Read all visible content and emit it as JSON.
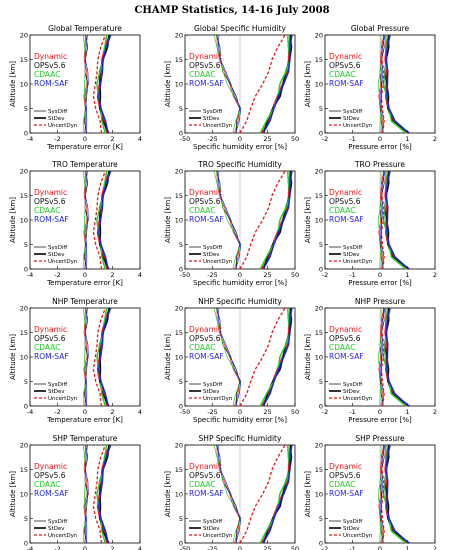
{
  "title": "CHAMP Statistics, 14-16 July 2008",
  "legend_names": [
    "Dynamic",
    "OPSv5.6",
    "CDAAC",
    "ROM-SAF"
  ],
  "legend_lines": [
    "SysDiff",
    "StDev",
    "UncertDyn"
  ],
  "colors": {
    "Dynamic": "#e8161a",
    "OPSv5.6": "#111111",
    "CDAAC": "#1fd11f",
    "ROM-SAF": "#1f1fe0",
    "UncertDyn": "#e8161a"
  },
  "regions": [
    "Global",
    "TRO",
    "NHP",
    "SHP"
  ],
  "panel_titles": [
    [
      "Global Temperature",
      "Global Specific Humidity",
      "Global Pressure"
    ],
    [
      "TRO Temperature",
      "TRO Specific Humidity",
      "TRO Pressure"
    ],
    [
      "NHP Temperature",
      "NHP Specific Humidity",
      "NHP Pressure"
    ],
    [
      "SHP Temperature",
      "SHP Specific Humidity",
      "SHP Pressure"
    ]
  ],
  "chart_data": [
    {
      "type": "line",
      "variable": "temperature",
      "xlabel": "Temperature error [K]",
      "ylabel": "Altitude [km]",
      "xlim": [
        -4,
        4
      ],
      "ylim": [
        0,
        20
      ],
      "xticks": [
        -4,
        -2,
        0,
        2,
        4
      ],
      "yticks": [
        0,
        5,
        10,
        15,
        20
      ],
      "sysdiff_x": [
        0.0,
        -0.05,
        0.05,
        0.0,
        0.1,
        0.05,
        0.0,
        0.05,
        0.0
      ],
      "stdev_x": [
        1.6,
        1.3,
        1.1,
        1.0,
        1.0,
        1.1,
        1.3,
        1.5,
        1.7
      ],
      "uncert_x": [
        1.2,
        1.0,
        0.8,
        0.7,
        0.7,
        0.8,
        1.0,
        1.2,
        1.4
      ]
    },
    {
      "type": "line",
      "variable": "specific_humidity",
      "xlabel": "Specific humidity error [%]",
      "ylabel": "Altitude [km]",
      "xlim": [
        -50,
        50
      ],
      "ylim": [
        0,
        20
      ],
      "xticks": [
        -50,
        -25,
        0,
        25,
        50
      ],
      "yticks": [
        0,
        5,
        10,
        15,
        20
      ],
      "sysdiff_x": [
        -5,
        -3,
        0,
        -5,
        -10,
        -15,
        -18,
        -20,
        -22
      ],
      "stdev_x": [
        20,
        25,
        30,
        35,
        38,
        42,
        45,
        45,
        45
      ],
      "uncert_x": [
        0,
        5,
        10,
        15,
        20,
        25,
        30,
        35,
        40
      ]
    },
    {
      "type": "line",
      "variable": "pressure",
      "xlabel": "Pressure error [%]",
      "ylabel": "Altitude [km]",
      "xlim": [
        -2,
        2
      ],
      "ylim": [
        0,
        20
      ],
      "xticks": [
        -2,
        -1,
        0,
        1,
        2
      ],
      "yticks": [
        0,
        5,
        10,
        15,
        20
      ],
      "sysdiff_x": [
        0.05,
        0.05,
        0.02,
        0.0,
        0.0,
        0.02,
        0.05,
        0.08,
        0.1
      ],
      "stdev_x": [
        1.0,
        0.45,
        0.3,
        0.25,
        0.2,
        0.2,
        0.22,
        0.25,
        0.28
      ],
      "uncert_x": [
        0.1,
        0.1,
        0.1,
        0.1,
        0.1,
        0.1,
        0.1,
        0.1,
        0.1
      ]
    }
  ]
}
